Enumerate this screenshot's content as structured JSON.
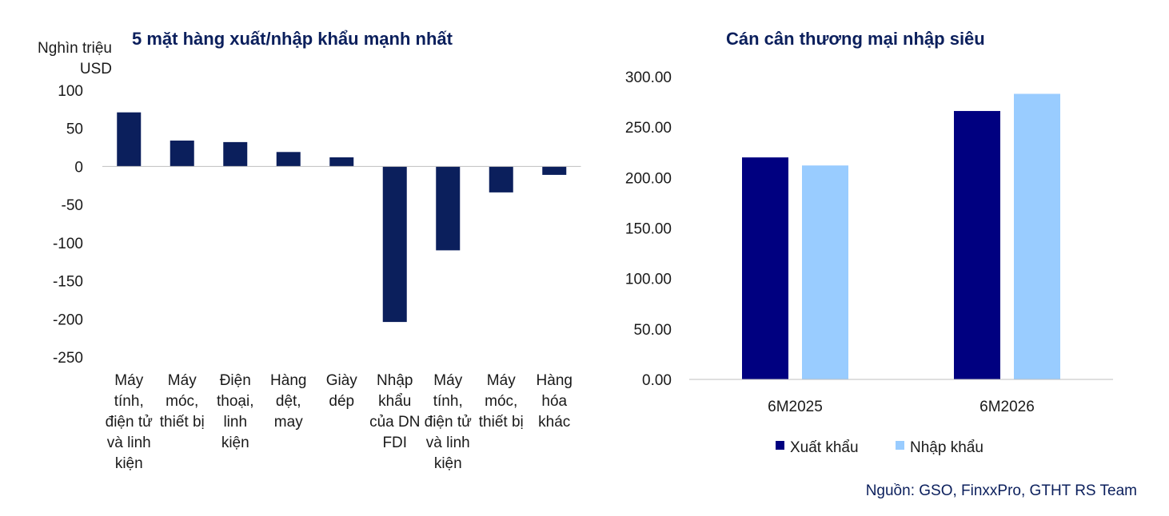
{
  "chart_data": [
    {
      "type": "bar",
      "title": "5 mặt hàng xuất/nhập khẩu mạnh nhất",
      "ylabel": "Nghìn triệu USD",
      "ylim": [
        -250,
        100
      ],
      "yticks": [
        "100",
        "50",
        "0",
        "-50",
        "-100",
        "-150",
        "-200",
        "-250"
      ],
      "yticks_values": [
        100,
        50,
        0,
        -50,
        -100,
        -150,
        -200,
        -250
      ],
      "categories": [
        [
          "Máy",
          "tính,",
          "điện tử",
          "và linh",
          "kiện"
        ],
        [
          "Máy",
          "móc,",
          "thiết bị"
        ],
        [
          "Điện",
          "thoại,",
          "linh",
          "kiện"
        ],
        [
          "Hàng",
          "dệt,",
          "may"
        ],
        [
          "Giày",
          "dép"
        ],
        [
          "Nhập",
          "khẩu",
          "của DN",
          "FDI"
        ],
        [
          "Máy",
          "tính,",
          "điện tử",
          "và linh",
          "kiện"
        ],
        [
          "Máy",
          "móc,",
          "thiết bị"
        ],
        [
          "Hàng",
          "hóa",
          "khác"
        ]
      ],
      "values": [
        71,
        34,
        32,
        19,
        12,
        -204,
        -110,
        -34,
        -11
      ],
      "color": "#0b1f5c"
    },
    {
      "type": "bar",
      "title": "Cán cân thương mại nhập siêu",
      "ylim": [
        0,
        300
      ],
      "yticks": [
        "300.00",
        "250.00",
        "200.00",
        "150.00",
        "100.00",
        "50.00",
        "0.00"
      ],
      "yticks_values": [
        300,
        250,
        200,
        150,
        100,
        50,
        0
      ],
      "categories": [
        "6M2025",
        "6M2026"
      ],
      "series": [
        {
          "name": "Xuất khẩu",
          "values": [
            220,
            266
          ],
          "color": "#000080"
        },
        {
          "name": "Nhập khẩu",
          "values": [
            212,
            283
          ],
          "color": "#99ccff"
        }
      ],
      "legend": "bottom"
    }
  ],
  "source": "Nguồn: GSO, FinxxPro, GTHT RS Team"
}
